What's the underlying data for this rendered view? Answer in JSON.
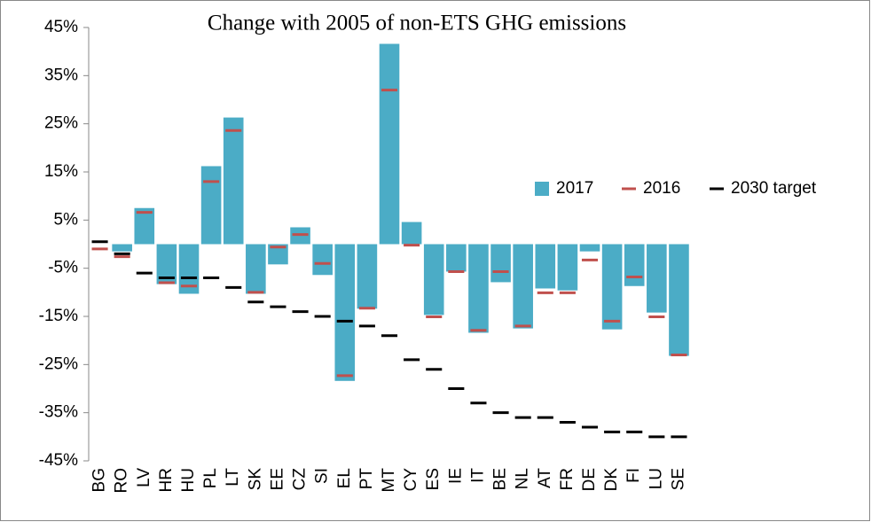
{
  "chart_data": {
    "type": "bar",
    "title": "Change with 2005 of non-ETS GHG emissions",
    "categories": [
      "BG",
      "RO",
      "LV",
      "HR",
      "HU",
      "PL",
      "LT",
      "SK",
      "EE",
      "CZ",
      "SI",
      "EL",
      "PT",
      "MT",
      "CY",
      "ES",
      "IE",
      "IT",
      "BE",
      "NL",
      "AT",
      "FR",
      "DE",
      "DK",
      "FI",
      "LU",
      "SE"
    ],
    "series": [
      {
        "name": "2017",
        "style": "bar",
        "color": "#4bacc6",
        "values": [
          0,
          -1.5,
          7.5,
          -8.3,
          -10.3,
          16.2,
          26.3,
          -10.3,
          -4.2,
          3.5,
          -6.4,
          -28.4,
          -13.4,
          41.6,
          4.6,
          -14.7,
          -5.7,
          -18.4,
          -7.9,
          -17.5,
          -9.2,
          -9.6,
          -1.5,
          -17.7,
          -8.7,
          -14.2,
          -23.2
        ]
      },
      {
        "name": "2016",
        "style": "dash",
        "color": "#c0504d",
        "values": [
          -1,
          -2.6,
          6.6,
          -8,
          -8.7,
          13,
          23.6,
          -10,
          -0.6,
          2,
          -4,
          -27.3,
          -13.3,
          32,
          -0.2,
          -15.1,
          -5.7,
          -17.9,
          -5.7,
          -17,
          -10.1,
          -10.1,
          -3.3,
          -16,
          -6.8,
          -15.1,
          -23
        ]
      },
      {
        "name": "2030 target",
        "style": "dash",
        "color": "#000000",
        "values": [
          0.5,
          -2,
          -6,
          -7,
          -7,
          -7,
          -9,
          -12,
          -13,
          -14,
          -15,
          -16,
          -17,
          -19,
          -24,
          -26,
          -30,
          -33,
          -35,
          -36,
          -36,
          -37,
          -38,
          -39,
          -39,
          -40,
          -40
        ]
      }
    ],
    "ylim": [
      -45,
      45
    ],
    "yticks": [
      {
        "value": -45,
        "label": "-45%"
      },
      {
        "value": -35,
        "label": "-35%"
      },
      {
        "value": -25,
        "label": "-25%"
      },
      {
        "value": -15,
        "label": "-15%"
      },
      {
        "value": -5,
        "label": "-5%"
      },
      {
        "value": 5,
        "label": "5%"
      },
      {
        "value": 15,
        "label": "15%"
      },
      {
        "value": 25,
        "label": "25%"
      },
      {
        "value": 35,
        "label": "35%"
      },
      {
        "value": 45,
        "label": "45%"
      }
    ],
    "grid": false,
    "legend": "right"
  }
}
